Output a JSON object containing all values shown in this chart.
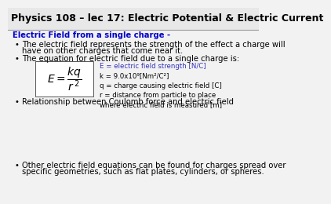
{
  "title": "Physics 108 – lec 17: Electric Potential & Electric Current",
  "title_bg": "#e8e8e8",
  "title_color": "#000000",
  "heading": "Electric Field from a single charge -",
  "heading_color": "#0000cc",
  "bullet1a": "The electric field represents the strength of the effect a charge will",
  "bullet1b": "have on other charges that come near it.",
  "bullet2": "The equation for electric field due to a single charge is:",
  "eq_note1": "E = electric field strength [N/C]",
  "eq_note2": "k = 9.0x10⁹[Nm²/C²]",
  "eq_note3": "q = charge causing electric field [C]",
  "eq_note4": "r = distance from particle to place",
  "eq_note5": "where electric field is measured [m]",
  "bullet3": "Relationship between Coulomb force and electric field",
  "bullet4a": "Other electric field equations can be found for charges spread over",
  "bullet4b": "specific geometries, such as flat plates, cylinders, or spheres.",
  "bg_color": "#f2f2f2",
  "text_color": "#000000",
  "note_color": "#3333bb",
  "body_font_size": 7.2,
  "small_font_size": 6.2,
  "title_font_size": 9.0
}
